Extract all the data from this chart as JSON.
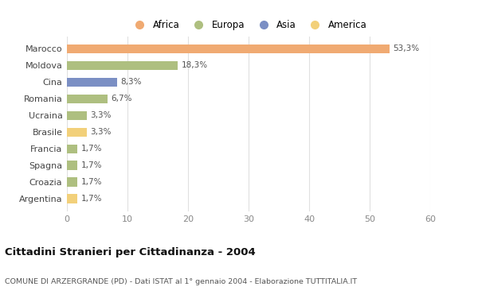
{
  "countries": [
    "Marocco",
    "Moldova",
    "Cina",
    "Romania",
    "Ucraina",
    "Brasile",
    "Francia",
    "Spagna",
    "Croazia",
    "Argentina"
  ],
  "values": [
    53.3,
    18.3,
    8.3,
    6.7,
    3.3,
    3.3,
    1.7,
    1.7,
    1.7,
    1.7
  ],
  "labels": [
    "53,3%",
    "18,3%",
    "8,3%",
    "6,7%",
    "3,3%",
    "3,3%",
    "1,7%",
    "1,7%",
    "1,7%",
    "1,7%"
  ],
  "colors": [
    "#F0AA72",
    "#AEBF80",
    "#7B8FC4",
    "#AEBF80",
    "#AEBF80",
    "#F2D07A",
    "#AEBF80",
    "#AEBF80",
    "#AEBF80",
    "#F2D07A"
  ],
  "legend_labels": [
    "Africa",
    "Europa",
    "Asia",
    "America"
  ],
  "legend_colors": [
    "#F0AA72",
    "#AEBF80",
    "#7B8FC4",
    "#F2D07A"
  ],
  "title": "Cittadini Stranieri per Cittadinanza - 2004",
  "subtitle": "COMUNE DI ARZERGRANDE (PD) - Dati ISTAT al 1° gennaio 2004 - Elaborazione TUTTITALIA.IT",
  "xlim": [
    0,
    60
  ],
  "xticks": [
    0,
    10,
    20,
    30,
    40,
    50,
    60
  ],
  "background_color": "#ffffff",
  "grid_color": "#e0e0e0"
}
